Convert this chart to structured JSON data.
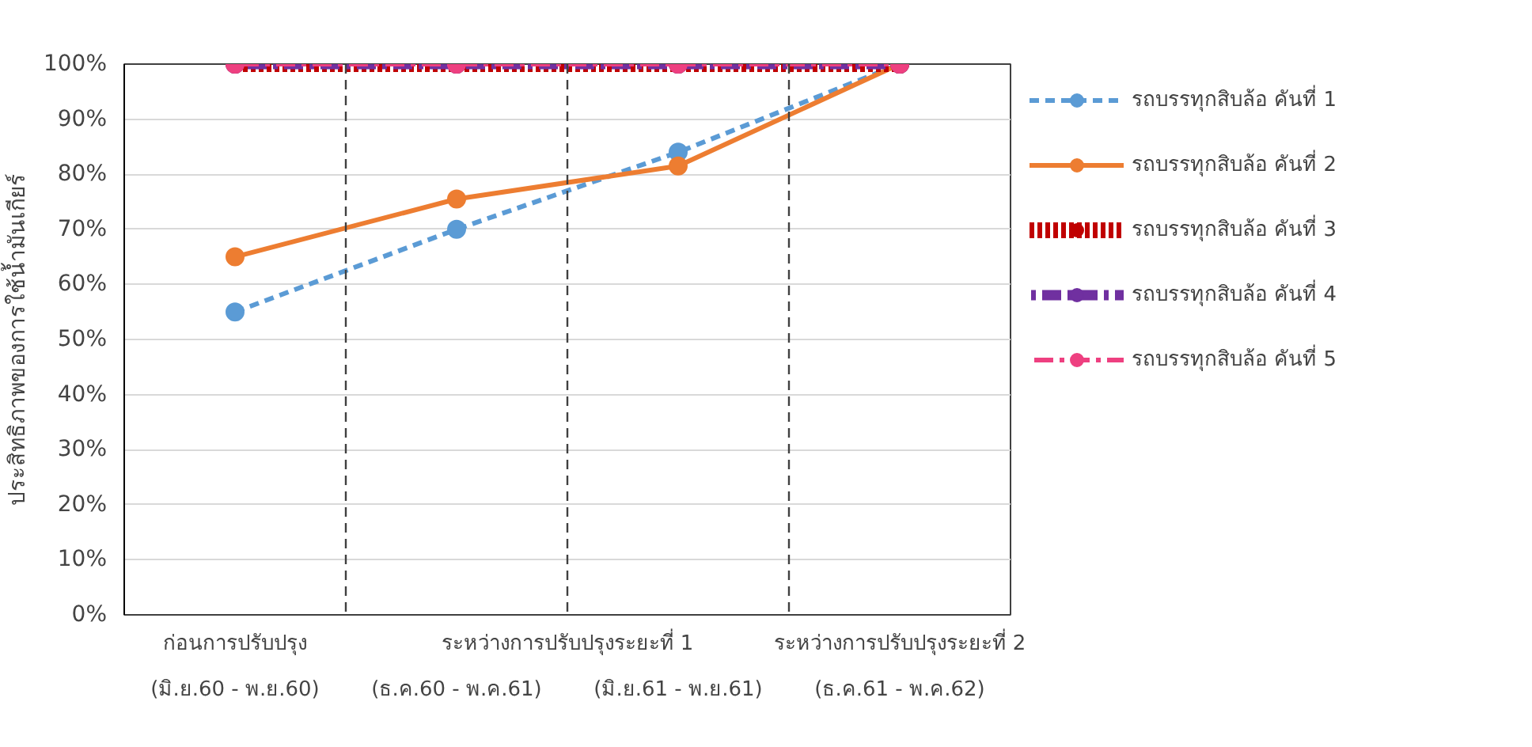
{
  "chart_data": {
    "type": "line",
    "ylabel": "ประสิทธิภาพของการใช้น้ำมันเกียร์",
    "categories": [
      "(มิ.ย.60 - พ.ย.60)",
      "(ธ.ค.60 - พ.ค.61)",
      "(มิ.ย.61 - พ.ย.61)",
      "(ธ.ค.61 - พ.ค.62)"
    ],
    "annotations": [
      "ก่อนการปรับปรุง",
      "ระหว่างการปรับปรุงระยะที่ 1",
      "ระหว่างการปรับปรุงระยะที่ 2"
    ],
    "series": [
      {
        "name": "รถบรรทุกสิบล้อ คันที่ 1",
        "color": "#5b9bd5",
        "line_style": "dashed",
        "values": [
          55,
          70,
          84,
          100
        ]
      },
      {
        "name": "รถบรรทุกสิบล้อ คันที่ 2",
        "color": "#ed7d31",
        "line_style": "solid",
        "values": [
          65,
          75.5,
          81.5,
          100
        ]
      },
      {
        "name": "รถบรรทุกสิบล้อ คันที่ 3",
        "color": "#c00000",
        "line_style": "dotted",
        "values": [
          100,
          100,
          100,
          100
        ]
      },
      {
        "name": "รถบรรทุกสิบล้อ คันที่ 4",
        "color": "#7030a0",
        "line_style": "dashdot",
        "values": [
          100,
          100,
          100,
          100
        ]
      },
      {
        "name": "รถบรรทุกสิบล้อ คันที่ 5",
        "color": "#ee4080",
        "line_style": "dashdot",
        "values": [
          100,
          100,
          100,
          100
        ]
      }
    ],
    "ylim": [
      0,
      100
    ],
    "yticks": [
      {
        "value": 0,
        "label": "0%"
      },
      {
        "value": 10,
        "label": "10%"
      },
      {
        "value": 20,
        "label": "20%"
      },
      {
        "value": 30,
        "label": "30%"
      },
      {
        "value": 40,
        "label": "40%"
      },
      {
        "value": 50,
        "label": "50%"
      },
      {
        "value": 60,
        "label": "60%"
      },
      {
        "value": 70,
        "label": "70%"
      },
      {
        "value": 80,
        "label": "80%"
      },
      {
        "value": 90,
        "label": "90%"
      },
      {
        "value": 100,
        "label": "100%"
      }
    ],
    "grid": "y",
    "legend": "right",
    "marker": "circle"
  }
}
